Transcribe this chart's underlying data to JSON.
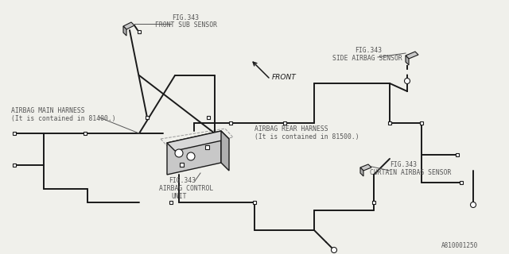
{
  "bg_color": "#f0f0eb",
  "line_color": "#1a1a1a",
  "text_color": "#666666",
  "label_color": "#555555",
  "title_ref": "A810001250",
  "labels": {
    "front_sub_sensor_ref": "FIG.343",
    "front_sub_sensor": "FRONT SUB SENSOR",
    "side_airbag_sensor_ref": "FIG.343",
    "side_airbag_sensor": "SIDE AIRBAG SENSOR",
    "curtain_airbag_sensor_ref": "FIG.343",
    "curtain_airbag_sensor": "CURTAIN AIRBAG SENSOR",
    "airbag_control_unit_ref": "FIG.343",
    "airbag_control_unit_1": "AIRBAG CONTROL",
    "airbag_control_unit_2": "UNIT",
    "airbag_main_harness_1": "AIRBAG MAIN HARNESS",
    "airbag_main_harness_2": "(It is contained in 81400.)",
    "airbag_rear_harness_1": "AIRBAG REAR HARNESS",
    "airbag_rear_harness_2": "(It is contained in 81500.)",
    "front_arrow": "FRONT"
  },
  "font_size": 5.8
}
